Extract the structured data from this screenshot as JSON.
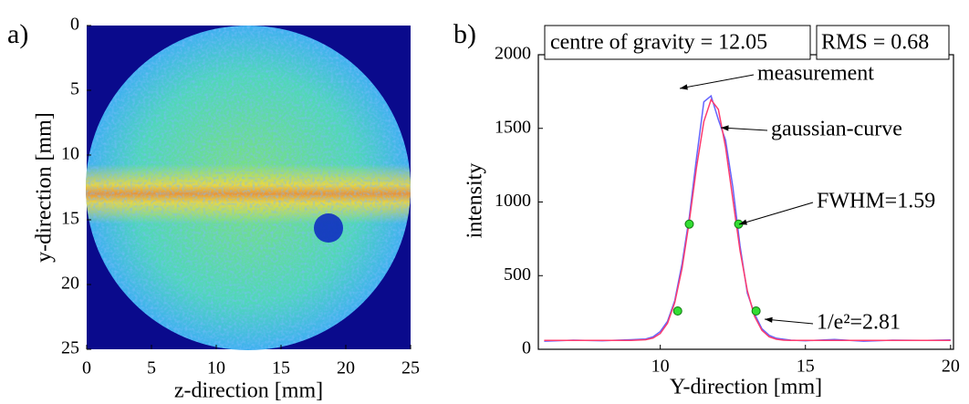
{
  "chart_data": [
    {
      "type": "heatmap",
      "panel_label": "a)",
      "xlabel": "z-direction [mm]",
      "ylabel": "y-direction [mm]",
      "xlim": [
        0,
        25
      ],
      "ylim": [
        25,
        0
      ],
      "xticks": [
        0,
        5,
        10,
        15,
        20,
        25
      ],
      "yticks": [
        0,
        5,
        10,
        15,
        20,
        25
      ]
    },
    {
      "type": "line",
      "panel_label": "b)",
      "xlabel": "Y-direction [mm]",
      "ylabel": "intensity",
      "xlim": [
        5.8,
        20.1
      ],
      "ylim": [
        0,
        2000
      ],
      "xticks": [
        10,
        15,
        20
      ],
      "yticks": [
        0,
        500,
        1000,
        1500,
        2000
      ],
      "x": [
        6,
        7,
        8,
        9,
        9.5,
        9.75,
        10,
        10.25,
        10.5,
        10.75,
        11,
        11.25,
        11.5,
        11.75,
        12,
        12.25,
        12.5,
        12.75,
        13,
        13.25,
        13.5,
        13.75,
        14,
        14.25,
        14.5,
        15,
        16,
        17,
        18,
        19,
        20
      ],
      "series": [
        {
          "color": "#6464ff",
          "values": [
            55,
            62,
            58,
            65,
            70,
            85,
            120,
            190,
            330,
            580,
            900,
            1300,
            1680,
            1720,
            1560,
            1420,
            1100,
            700,
            380,
            240,
            140,
            95,
            75,
            68,
            62,
            58,
            66,
            55,
            62,
            60,
            63
          ]
        },
        {
          "color": "#ff3c6e",
          "values": [
            60,
            60,
            60,
            60,
            65,
            76,
            107,
            177,
            317,
            549,
            872,
            1237,
            1546,
            1695,
            1629,
            1373,
            1018,
            669,
            397,
            223,
            129,
            85,
            68,
            62,
            60,
            60,
            60,
            60,
            60,
            60,
            60
          ]
        }
      ],
      "points": {
        "color": "#33dd33",
        "x": [
          11,
          12.7,
          10.6,
          13.3
        ],
        "y": [
          850,
          850,
          260,
          260
        ]
      },
      "annotations": [
        "centre of gravity = 12.05",
        "RMS = 0.68",
        "measurement",
        "gaussian-curve",
        "FWHM=1.59",
        "1/e²=2.81"
      ]
    }
  ]
}
